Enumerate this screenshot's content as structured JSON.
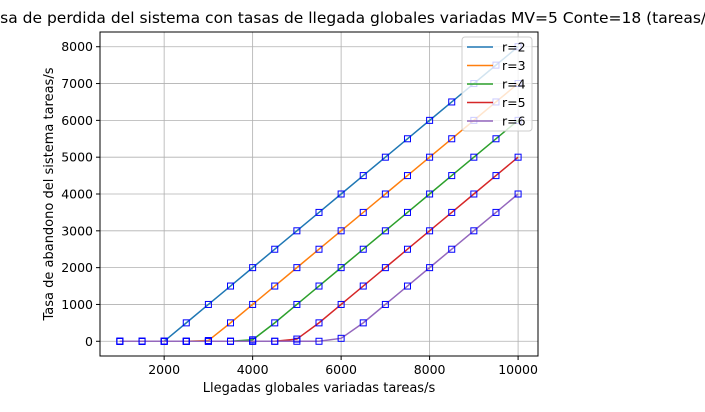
{
  "chart_data": {
    "type": "line",
    "title": "Tasa de perdida del sistema con tasas de llegada globales variadas MV=5 Conte=18 (tareas/s)",
    "xlabel": "Llegadas globales variadas tareas/s",
    "ylabel": "Tasa de abandono del sistema tareas/s",
    "xlim": [
      550,
      10450
    ],
    "ylim": [
      -400,
      8400
    ],
    "xticks": [
      2000,
      4000,
      6000,
      8000,
      10000
    ],
    "yticks": [
      0,
      1000,
      2000,
      3000,
      4000,
      5000,
      6000,
      7000,
      8000
    ],
    "grid": true,
    "legend": "top-right",
    "marker": "square",
    "marker_color": "#0000ff",
    "x": [
      1000,
      1500,
      2000,
      2500,
      3000,
      3500,
      4000,
      4500,
      5000,
      5500,
      6000,
      6500,
      7000,
      7500,
      8000,
      8500,
      9000,
      9500,
      10000
    ],
    "series": [
      {
        "name": "r=2",
        "color": "#1f77b4",
        "values": [
          0,
          0,
          0,
          500,
          1000,
          1500,
          2000,
          2500,
          3000,
          3500,
          4000,
          4500,
          5000,
          5500,
          6000,
          6500,
          7000,
          7500,
          8000
        ]
      },
      {
        "name": "r=3",
        "color": "#ff7f0e",
        "values": [
          0,
          0,
          0,
          0,
          20,
          500,
          1000,
          1500,
          2000,
          2500,
          3000,
          3500,
          4000,
          4500,
          5000,
          5500,
          6000,
          6500,
          7000
        ]
      },
      {
        "name": "r=4",
        "color": "#2ca02c",
        "values": [
          0,
          0,
          0,
          0,
          0,
          0,
          40,
          500,
          1000,
          1500,
          2000,
          2500,
          3000,
          3500,
          4000,
          4500,
          5000,
          5500,
          6000
        ]
      },
      {
        "name": "r=5",
        "color": "#d62728",
        "values": [
          0,
          0,
          0,
          0,
          0,
          0,
          0,
          0,
          60,
          500,
          1000,
          1500,
          2000,
          2500,
          3000,
          3500,
          4000,
          4500,
          5000
        ]
      },
      {
        "name": "r=6",
        "color": "#9467bd",
        "values": [
          0,
          0,
          0,
          0,
          0,
          0,
          0,
          0,
          0,
          0,
          80,
          500,
          1000,
          1500,
          2000,
          2500,
          3000,
          3500,
          4000
        ]
      }
    ]
  }
}
